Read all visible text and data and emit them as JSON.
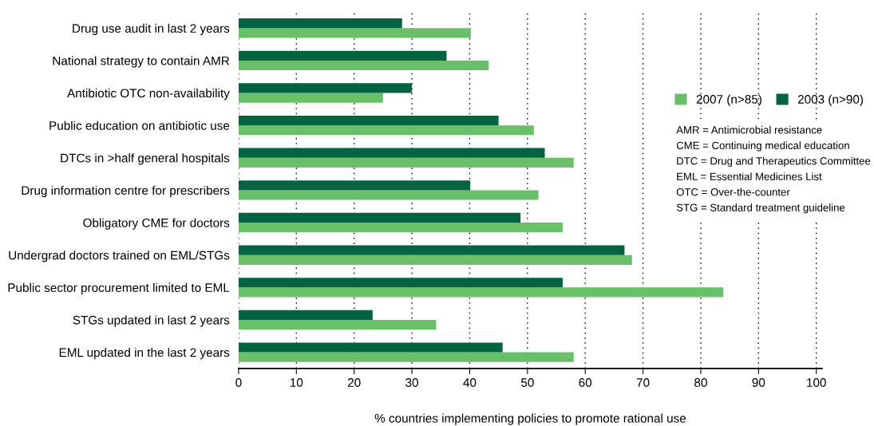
{
  "chart_data": {
    "type": "bar",
    "orientation": "horizontal",
    "xlabel": "% countries implementing policies to promote rational use",
    "categories": [
      "Drug use audit in last 2 years",
      "National strategy to contain AMR",
      "Antibiotic OTC non-availability",
      "Public education on antibiotic use",
      "DTCs in >half general hospitals",
      "Drug information centre for prescribers",
      "Obligatory CME for doctors",
      "Undergrad doctors trained on EML/STGs",
      "Public sector procurement limited to EML",
      "STGs updated in last 2 years",
      "EML updated in the last 2 years"
    ],
    "series": [
      {
        "name": "2007 (n>85)",
        "color": "#6abf69",
        "values": [
          40.2,
          43.3,
          25.0,
          51.1,
          58.0,
          51.9,
          56.1,
          68.1,
          83.9,
          34.2,
          58.0
        ]
      },
      {
        "name": "2003 (n>90)",
        "color": "#046340",
        "values": [
          28.3,
          36.0,
          30.0,
          45.0,
          53.0,
          40.1,
          48.8,
          66.8,
          56.1,
          23.2,
          45.7
        ]
      }
    ],
    "xlim": [
      0,
      101
    ],
    "xticks": [
      0,
      10,
      20,
      30,
      40,
      50,
      60,
      70,
      80,
      90,
      100
    ],
    "grid": "x",
    "legend": "top right",
    "annotations": [
      "AMR = Antimicrobial resistance\nCME = Continuing medical education\nDTC = Drug and Therapeutics Committee\nEML = Essential Medicines List\nOTC = Over-the-counter\nSTG = Standard treatment guideline"
    ]
  }
}
